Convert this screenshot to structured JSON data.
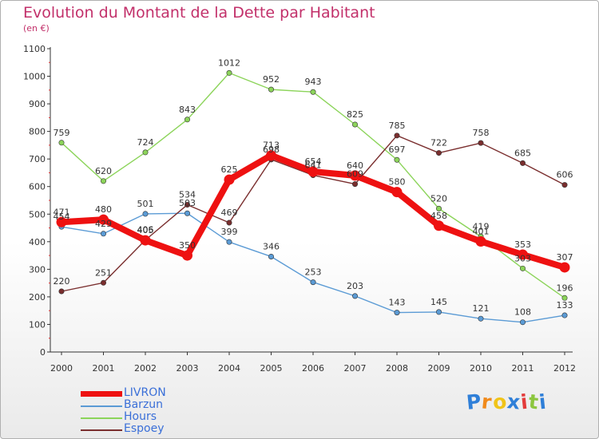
{
  "chart_data": {
    "type": "line",
    "title": "Evolution du Montant de la Dette par Habitant",
    "subtitle": "(en €)",
    "x": [
      "2000",
      "2001",
      "2002",
      "2003",
      "2004",
      "2005",
      "2006",
      "2007",
      "2008",
      "2009",
      "2010",
      "2011",
      "2012"
    ],
    "ylim": [
      0,
      1100
    ],
    "yticks": [
      "0",
      "100",
      "200",
      "300",
      "400",
      "500",
      "600",
      "700",
      "800",
      "900",
      "1000",
      "1100"
    ],
    "grid": false,
    "legend_position": "bottom-left",
    "series": [
      {
        "name": "LIVRON",
        "color": "#ee1111",
        "values": [
          471,
          480,
          405,
          350,
          625,
          713,
          654,
          640,
          580,
          458,
          401,
          353,
          307
        ],
        "labels": [
          "471",
          "480",
          "405",
          "350",
          "625",
          "713",
          "654",
          "640",
          "580",
          "458",
          "401",
          "353",
          "307"
        ]
      },
      {
        "name": "Barzun",
        "color": "#5b9bd5",
        "values": [
          454,
          429,
          501,
          503,
          399,
          346,
          253,
          203,
          143,
          145,
          121,
          108,
          133
        ],
        "labels": [
          "454",
          "429",
          "501",
          "503",
          "399",
          "346",
          "253",
          "203",
          "143",
          "145",
          "121",
          "108",
          "133"
        ]
      },
      {
        "name": "Hours",
        "color": "#8cd45a",
        "values": [
          759,
          620,
          724,
          843,
          1012,
          952,
          943,
          825,
          697,
          520,
          419,
          303,
          196
        ],
        "labels": [
          "759",
          "620",
          "724",
          "843",
          "1012",
          "952",
          "943",
          "825",
          "697",
          "520",
          "419",
          "303",
          "196"
        ]
      },
      {
        "name": "Espoey",
        "color": "#7a2e2e",
        "values": [
          220,
          251,
          406,
          534,
          469,
          698,
          641,
          609,
          785,
          722,
          758,
          685,
          606
        ],
        "labels": [
          "220",
          "251",
          "406",
          "534",
          "469",
          "698",
          "641",
          "609",
          "785",
          "722",
          "758",
          "685",
          "606"
        ]
      }
    ]
  },
  "logo": {
    "letters": [
      "P",
      "r",
      "o",
      "x",
      "i",
      "t",
      "i"
    ],
    "colors": [
      "#2f7fd8",
      "#f08a1c",
      "#f0c419",
      "#2f7fd8",
      "#e33b3b",
      "#8cc63f",
      "#2f7fd8"
    ]
  }
}
